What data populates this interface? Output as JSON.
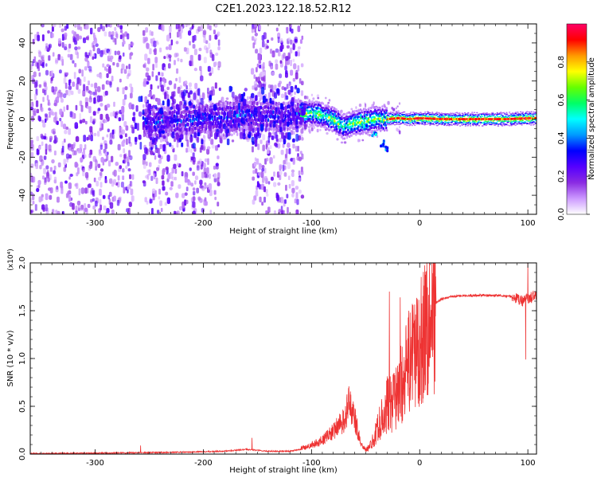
{
  "title": "C2E1.2023.122.18.52.R12",
  "chart_data": [
    {
      "type": "heatmap",
      "xlabel": "Height of straight line (km)",
      "ylabel": "Frequency (Hz)",
      "xlim": [
        -360,
        108
      ],
      "ylim": [
        -50,
        50
      ],
      "x_ticks": [
        -300,
        -200,
        -100,
        0,
        100
      ],
      "y_ticks": [
        -40,
        -20,
        0,
        20,
        40
      ],
      "colorbar": {
        "label": "Normalized spectral amplitude",
        "range": [
          0,
          1
        ],
        "ticks": [
          "0.0",
          "0.2",
          "0.4",
          "0.6",
          "0.8"
        ],
        "tick_values": [
          0,
          0.2,
          0.4,
          0.6,
          0.8
        ],
        "colors": [
          "#ffffff",
          "#cc99ff",
          "#8a2be2",
          "#5500ff",
          "#0000ff",
          "#0099ff",
          "#00ffff",
          "#00ff66",
          "#66ff00",
          "#ffff00",
          "#ff9900",
          "#ff0000",
          "#ff0066"
        ]
      },
      "ridge_center": [
        [
          -250,
          -2
        ],
        [
          -200,
          0
        ],
        [
          -160,
          2
        ],
        [
          -130,
          1
        ],
        [
          -110,
          3
        ],
        [
          -95,
          3
        ],
        [
          -80,
          0
        ],
        [
          -70,
          -4
        ],
        [
          -60,
          -2
        ],
        [
          -50,
          -1
        ],
        [
          -40,
          0
        ],
        [
          -30,
          0
        ],
        [
          -20,
          0.5
        ],
        [
          -10,
          0
        ],
        [
          0,
          0.5
        ],
        [
          20,
          0
        ],
        [
          50,
          0
        ],
        [
          80,
          0
        ],
        [
          105,
          0.5
        ]
      ],
      "tail": [
        [
          -50,
          -4
        ],
        [
          -42,
          -8
        ],
        [
          -35,
          -13
        ],
        [
          -30,
          -16
        ]
      ],
      "noise_regions": [
        [
          -360,
          -265
        ],
        [
          -255,
          -185
        ],
        [
          -155,
          -108
        ]
      ]
    },
    {
      "type": "line",
      "xlabel": "Height of straight line (km)",
      "ylabel": "SNR (10 * v/v)",
      "scale_label": "(x10⁴)",
      "xlim": [
        -360,
        108
      ],
      "ylim": [
        0,
        2
      ],
      "x_ticks": [
        -300,
        -200,
        -100,
        0,
        100
      ],
      "y_ticks": [
        "0.0",
        "0.5",
        "1.0",
        "1.5",
        "2.0"
      ],
      "y_tick_values": [
        0,
        0.5,
        1,
        1.5,
        2
      ],
      "color": "#ee3333",
      "envelope": [
        [
          -360,
          0.005
        ],
        [
          -300,
          0.01
        ],
        [
          -260,
          0.015
        ],
        [
          -220,
          0.02
        ],
        [
          -180,
          0.03
        ],
        [
          -160,
          0.05
        ],
        [
          -140,
          0.03
        ],
        [
          -120,
          0.03
        ],
        [
          -105,
          0.06
        ],
        [
          -90,
          0.12
        ],
        [
          -80,
          0.2
        ],
        [
          -70,
          0.3
        ],
        [
          -65,
          0.45
        ],
        [
          -60,
          0.32
        ],
        [
          -55,
          0.12
        ],
        [
          -50,
          0.04
        ],
        [
          -45,
          0.1
        ],
        [
          -40,
          0.25
        ],
        [
          -35,
          0.4
        ],
        [
          -30,
          0.55
        ],
        [
          -25,
          0.55
        ],
        [
          -20,
          0.7
        ],
        [
          -15,
          0.82
        ],
        [
          -10,
          1.0
        ],
        [
          -5,
          1.1
        ],
        [
          0,
          1.25
        ],
        [
          5,
          1.38
        ],
        [
          10,
          1.5
        ],
        [
          15,
          1.58
        ],
        [
          20,
          1.62
        ],
        [
          30,
          1.65
        ],
        [
          50,
          1.66
        ],
        [
          70,
          1.66
        ],
        [
          85,
          1.65
        ],
        [
          90,
          1.62
        ],
        [
          95,
          1.6
        ],
        [
          100,
          1.62
        ],
        [
          105,
          1.65
        ],
        [
          108,
          1.67
        ]
      ],
      "spikes": [
        [
          -258,
          0.09
        ],
        [
          -155,
          0.17
        ],
        [
          -65,
          0.55
        ],
        [
          -28,
          1.7
        ],
        [
          -18,
          1.64
        ],
        [
          -10,
          1.5
        ],
        [
          -2,
          1.55
        ],
        [
          98,
          0.99
        ],
        [
          100,
          2.0
        ]
      ]
    }
  ]
}
